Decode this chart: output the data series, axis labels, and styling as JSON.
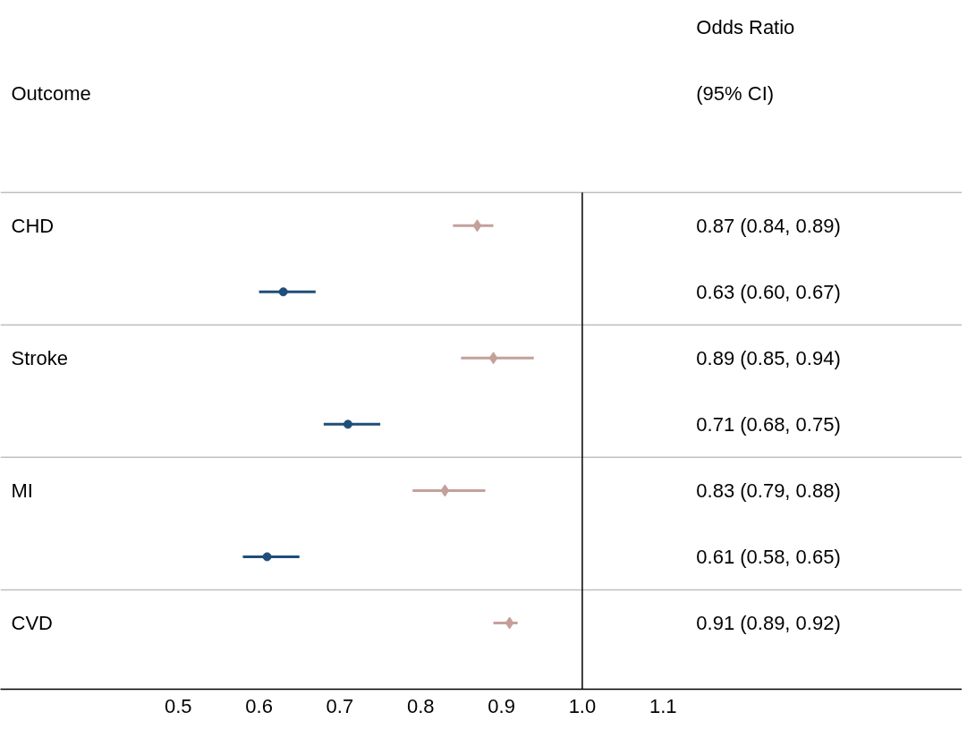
{
  "chart_data": {
    "type": "scatter",
    "orientation": "horizontal",
    "ylabel": "Outcome",
    "annotations": [
      "Odds Ratio",
      "(95% CI)",
      "0.87 (0.84, 0.89)",
      "0.63 (0.60, 0.67)",
      "0.89 (0.85, 0.94)",
      "0.71 (0.68, 0.75)",
      "0.83 (0.79, 0.88)",
      "0.61 (0.58, 0.65)",
      "0.91 (0.89, 0.92)"
    ],
    "categories": [
      "CHD",
      null,
      "Stroke",
      null,
      "MI",
      null,
      "CVD"
    ],
    "series": [
      {
        "color": "#c4a09a",
        "marker": "diamond",
        "values": [
          0.87,
          null,
          0.89,
          null,
          0.83,
          null,
          0.91
        ],
        "errors": [
          [
            0.84,
            0.89
          ],
          null,
          [
            0.85,
            0.94
          ],
          null,
          [
            0.79,
            0.88
          ],
          null,
          [
            0.89,
            0.92
          ]
        ]
      },
      {
        "color": "#1f4e79",
        "marker": "circle",
        "values": [
          null,
          0.63,
          null,
          0.71,
          null,
          0.61,
          null
        ],
        "errors": [
          null,
          [
            0.6,
            0.67
          ],
          null,
          [
            0.68,
            0.75
          ],
          null,
          [
            0.58,
            0.65
          ],
          null
        ]
      }
    ],
    "xlim": [
      0.28,
      1.47
    ],
    "xticks": [
      0.5,
      0.6,
      0.7,
      0.8,
      0.9,
      {
        "value": 1.0,
        "label": "1.0"
      },
      1.1
    ],
    "ref_lines": [
      {
        "axis": "x",
        "value": 1.0,
        "color": "#000000"
      }
    ],
    "grid": false
  }
}
